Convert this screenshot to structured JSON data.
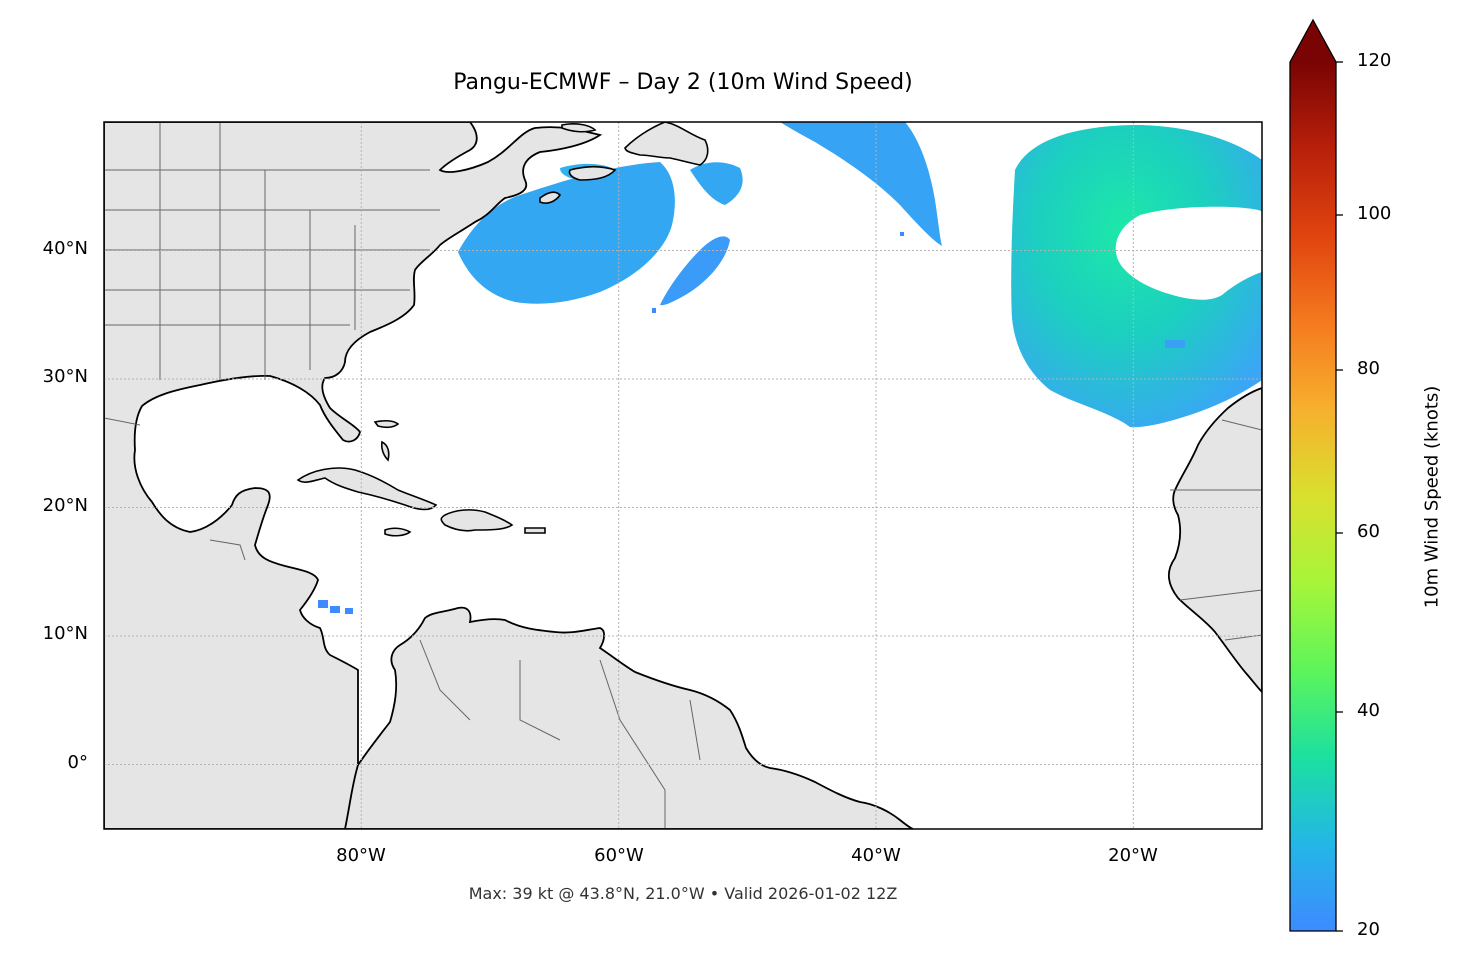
{
  "title": "Pangu-ECMWF – Day 2 (10m Wind Speed)",
  "footer": "Max: 39 kt @ 43.8°N, 21.0°W • Valid 2026-01-02 12Z",
  "map": {
    "extent": {
      "lon_min": -100,
      "lon_max": -10,
      "lat_min": -5,
      "lat_max": 50
    },
    "lat_ticks": [
      {
        "value": 40,
        "label": "40°N"
      },
      {
        "value": 30,
        "label": "30°N"
      },
      {
        "value": 20,
        "label": "20°N"
      },
      {
        "value": 10,
        "label": "10°N"
      },
      {
        "value": 0,
        "label": "0°"
      }
    ],
    "lon_ticks": [
      {
        "value": -80,
        "label": "80°W"
      },
      {
        "value": -60,
        "label": "60°W"
      },
      {
        "value": -40,
        "label": "40°W"
      },
      {
        "value": -20,
        "label": "20°W"
      }
    ],
    "gridlines": true,
    "colors": {
      "land": "#e5e5e5",
      "coast": "#000000",
      "border": "#666666",
      "ocean": "#ffffff"
    }
  },
  "colorbar": {
    "label": "10m Wind Speed (knots)",
    "min": 20,
    "max": 120,
    "ticks": [
      "120",
      "100",
      "80",
      "60",
      "40",
      "20"
    ],
    "extend": "max",
    "colormap": [
      "#3d8bff",
      "#23b7e6",
      "#1ce0a0",
      "#5df55a",
      "#a6f53a",
      "#d9e02e",
      "#f6b02e",
      "#f57a1e",
      "#e0440f",
      "#b8200a",
      "#7a0403"
    ]
  }
}
